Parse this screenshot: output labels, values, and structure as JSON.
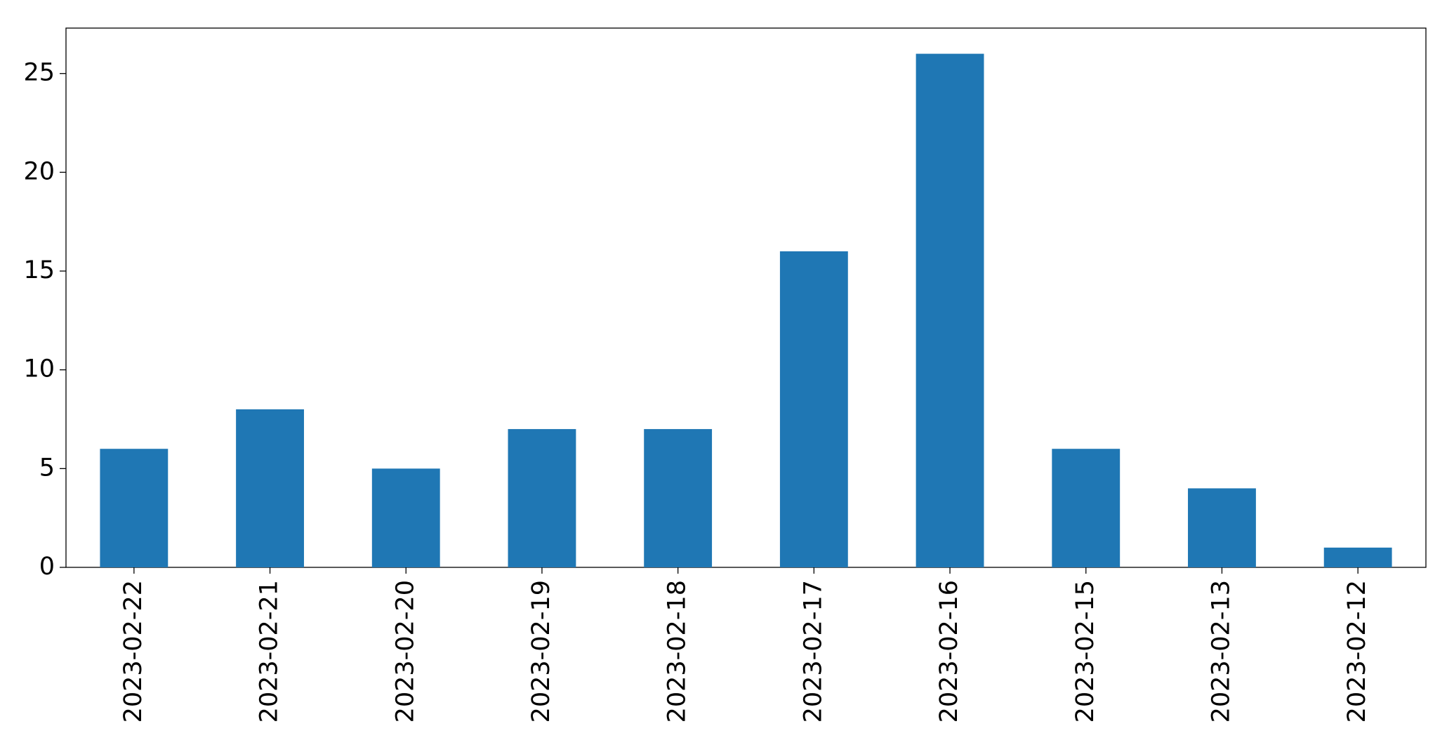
{
  "chart_data": {
    "type": "bar",
    "categories": [
      "2023-02-22",
      "2023-02-21",
      "2023-02-20",
      "2023-02-19",
      "2023-02-18",
      "2023-02-17",
      "2023-02-16",
      "2023-02-15",
      "2023-02-13",
      "2023-02-12"
    ],
    "values": [
      6,
      8,
      5,
      7,
      7,
      16,
      26,
      6,
      4,
      1
    ],
    "color": "#1f77b4",
    "ylim": [
      0,
      27.3
    ],
    "yticks": [
      0,
      5,
      10,
      15,
      20,
      25
    ],
    "grid": false
  }
}
